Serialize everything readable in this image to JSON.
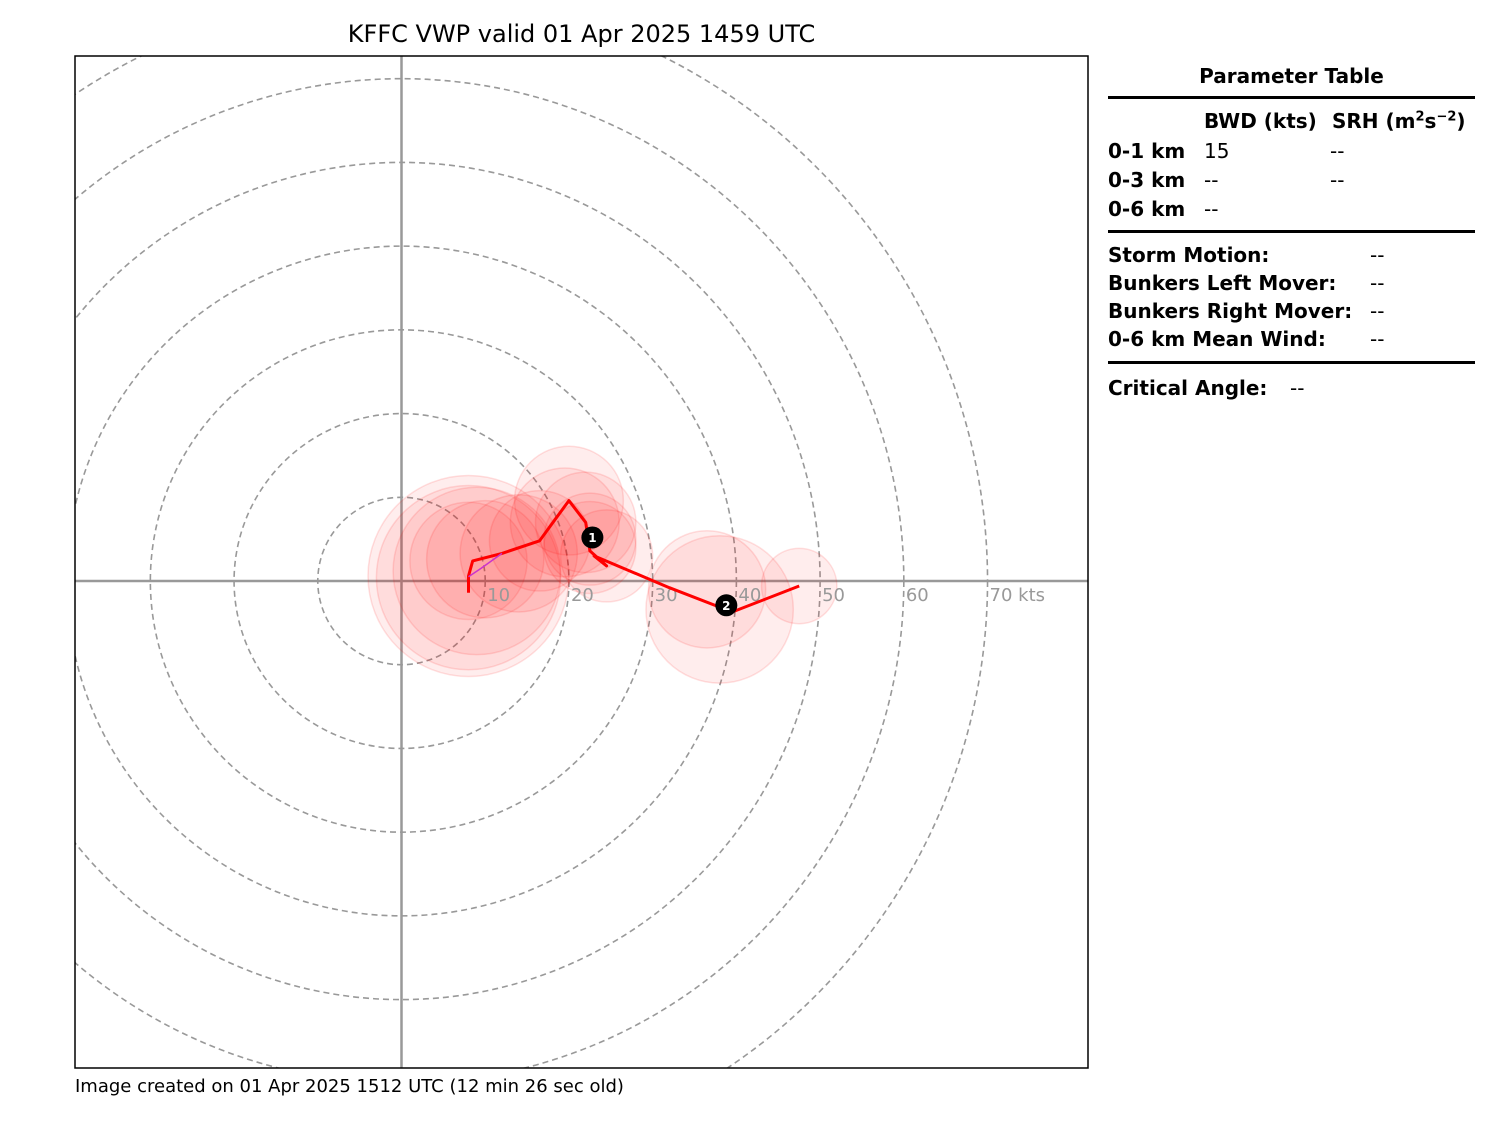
{
  "title": "KFFC VWP valid 01 Apr 2025 1459 UTC",
  "footer": "Image created on 01 Apr 2025 1512 UTC (12 min 26 sec old)",
  "chart_data": {
    "type": "hodograph",
    "units": "kts",
    "rings": [
      10,
      20,
      30,
      40,
      50,
      60,
      70
    ],
    "ring_labels": [
      "10",
      "20",
      "30",
      "40",
      "50",
      "60",
      "70 kts"
    ],
    "range": [
      -39,
      82
    ],
    "grid": true,
    "series": [
      {
        "color": "#ff0000",
        "points": [
          [
            8,
            -1.4
          ],
          [
            8,
            0.6
          ],
          [
            8.5,
            2.4
          ],
          [
            12,
            3.3
          ],
          [
            16.5,
            4.8
          ],
          [
            20,
            9.6
          ],
          [
            22,
            7.0
          ],
          [
            22.5,
            3.6
          ],
          [
            24.5,
            1.8
          ],
          [
            23,
            3.0
          ],
          [
            32,
            -0.8
          ],
          [
            39.5,
            -3.7
          ],
          [
            47.5,
            -0.6
          ]
        ]
      },
      {
        "color": "#cc33cc",
        "points": [
          [
            8,
            0.5
          ],
          [
            9.5,
            1.5
          ],
          [
            12,
            3.3
          ]
        ]
      }
    ],
    "uncertainty_circles": [
      {
        "u": 8,
        "v": 0.4,
        "r": 11
      },
      {
        "u": 8,
        "v": 0.6,
        "r": 12
      },
      {
        "u": 9,
        "v": 1.2,
        "r": 10
      },
      {
        "u": 8,
        "v": 2.4,
        "r": 7
      },
      {
        "u": 10,
        "v": 2.6,
        "r": 7
      },
      {
        "u": 14,
        "v": 3.3,
        "r": 7
      },
      {
        "u": 16.5,
        "v": 4.8,
        "r": 6
      },
      {
        "u": 19.5,
        "v": 7.0,
        "r": 6.5
      },
      {
        "u": 20,
        "v": 9.6,
        "r": 6.5
      },
      {
        "u": 22,
        "v": 7.0,
        "r": 6
      },
      {
        "u": 22.5,
        "v": 4.0,
        "r": 5.5
      },
      {
        "u": 24.5,
        "v": 3.0,
        "r": 5.5
      },
      {
        "u": 22.5,
        "v": 5.0,
        "r": 5.5
      },
      {
        "u": 36.5,
        "v": -1.0,
        "r": 7
      },
      {
        "u": 38,
        "v": -3.4,
        "r": 8.8
      },
      {
        "u": 47.5,
        "v": -0.6,
        "r": 4.5
      }
    ],
    "markers": [
      {
        "label": "1",
        "u": 22.8,
        "v": 5.2
      },
      {
        "label": "2",
        "u": 38.8,
        "v": -2.9
      }
    ]
  },
  "parameter_table": {
    "title": "Parameter Table",
    "col_bwd": "BWD (kts)",
    "col_srh": "SRH (m",
    "col_srh_exp1": "2",
    "col_srh_mid": "s",
    "col_srh_exp2": "−2",
    "col_srh_end": ")",
    "rows": [
      {
        "label": "0-1 km",
        "bwd": "15",
        "srh": "--"
      },
      {
        "label": "0-3 km",
        "bwd": "--",
        "srh": "--"
      },
      {
        "label": "0-6 km",
        "bwd": "--",
        "srh": ""
      }
    ],
    "storm_motion_label": "Storm Motion:",
    "storm_motion_value": "--",
    "bunkers_left_label": "Bunkers Left Mover:",
    "bunkers_left_value": "--",
    "bunkers_right_label": "Bunkers Right Mover:",
    "bunkers_right_value": "--",
    "mean_wind_label": "0-6 km Mean Wind:",
    "mean_wind_value": "--",
    "critical_angle_label": "Critical Angle:",
    "critical_angle_value": "--"
  }
}
